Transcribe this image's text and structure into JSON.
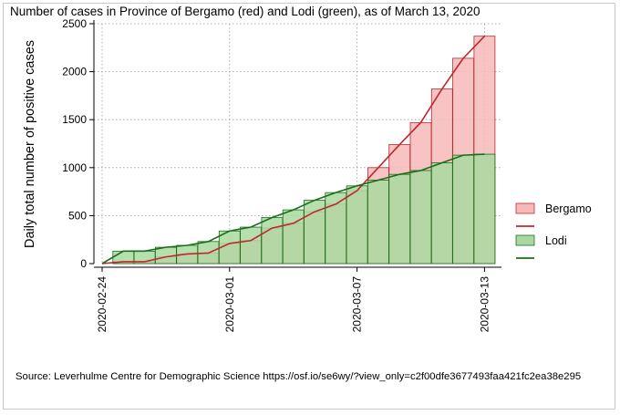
{
  "chart_data": {
    "type": "bar",
    "title": "Number of cases in Province of Bergamo (red) and Lodi (green), as of March 13, 2020",
    "ylabel": "Daily total number of positive cases",
    "xlabel": "",
    "ylim": [
      0,
      2500
    ],
    "yticks": [
      0,
      500,
      1000,
      1500,
      2000,
      2500
    ],
    "xticks": [
      "2020-02-24",
      "2020-03-01",
      "2020-03-07",
      "2020-03-13"
    ],
    "dates": [
      "2020-02-24",
      "2020-02-25",
      "2020-02-26",
      "2020-02-27",
      "2020-02-28",
      "2020-02-29",
      "2020-03-01",
      "2020-03-02",
      "2020-03-03",
      "2020-03-04",
      "2020-03-05",
      "2020-03-06",
      "2020-03-07",
      "2020-03-08",
      "2020-03-09",
      "2020-03-10",
      "2020-03-11",
      "2020-03-12",
      "2020-03-13"
    ],
    "series": [
      {
        "name": "Bergamo",
        "color": "#c0272d",
        "fill": "#f7b8b8",
        "values": [
          0,
          20,
          20,
          70,
          100,
          110,
          210,
          240,
          370,
          420,
          540,
          620,
          760,
          1000,
          1240,
          1470,
          1820,
          2140,
          2370
        ]
      },
      {
        "name": "Lodi",
        "color": "#1a6e1a",
        "fill": "#a9d9a0",
        "values": [
          0,
          130,
          130,
          170,
          190,
          230,
          340,
          380,
          480,
          560,
          660,
          740,
          810,
          870,
          930,
          970,
          1050,
          1130,
          1140
        ]
      }
    ],
    "legend": [
      "Bergamo",
      "",
      "Lodi",
      ""
    ],
    "legend_position": "right",
    "grid": true
  },
  "source_text": "Source: Leverhulme Centre for Demographic Science https://osf.io/se6wy/?view_only=c2f00dfe3677493faa421fc2ea38e295"
}
